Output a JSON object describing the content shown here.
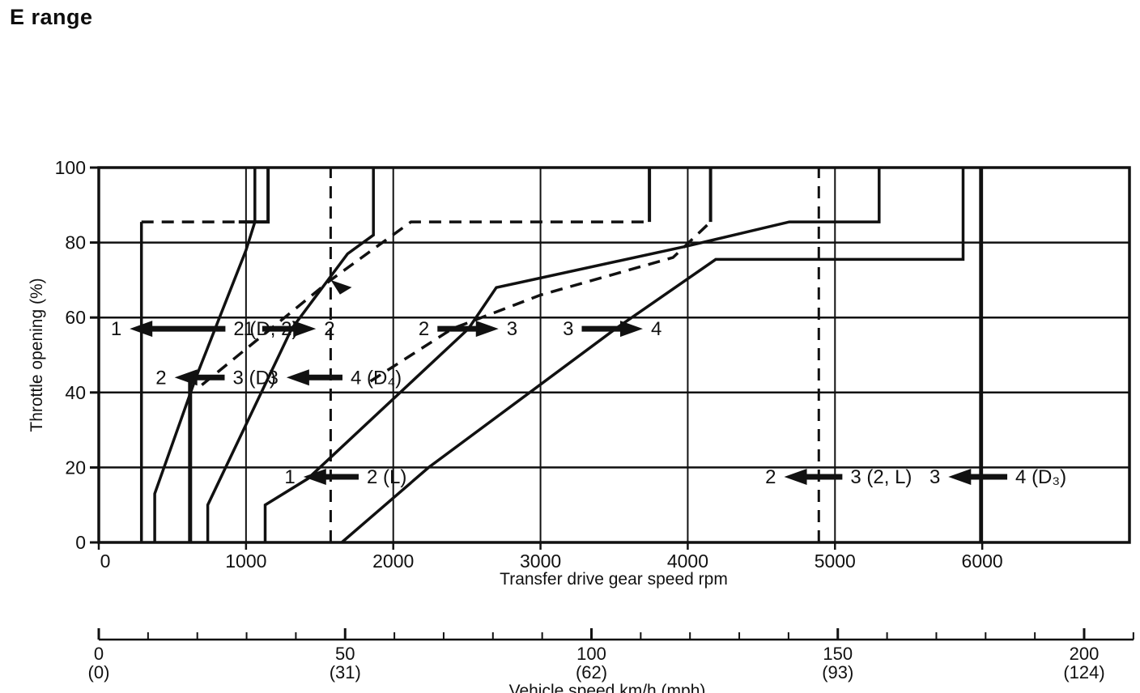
{
  "title": "E range",
  "colors": {
    "ink": "#111111",
    "paper": "#ffffff"
  },
  "chart_data": {
    "type": "line",
    "title": "E range",
    "grid": true,
    "x_axis_rpm": {
      "label": "Transfer drive gear speed  rpm",
      "tick_values": [
        0,
        1000,
        2000,
        3000,
        4000,
        5000,
        6000
      ],
      "range": [
        0,
        7000
      ]
    },
    "y_axis": {
      "label": "Throttle opening (%)",
      "tick_values": [
        0,
        20,
        40,
        60,
        80,
        100
      ],
      "range": [
        0,
        100
      ]
    },
    "x_axis_speed": {
      "label": "Vehicle speed  km/h (mph)",
      "major_ticks_kmh": [
        0,
        50,
        100,
        150,
        200
      ],
      "mph_labels": [
        "(0)",
        "(31)",
        "(62)",
        "(93)",
        "(124)"
      ],
      "minor_step_kmh": 10,
      "range": [
        0,
        210
      ]
    },
    "series": [
      {
        "name": "down-2-1-vertical",
        "style": "solid",
        "width": 3.5,
        "points": [
          [
            290,
            0
          ],
          [
            290,
            85.5
          ]
        ]
      },
      {
        "name": "down-2-1-step-dashed",
        "style": "dashed",
        "width": 3.5,
        "points": [
          [
            290,
            85.5
          ],
          [
            950,
            85.5
          ]
        ]
      },
      {
        "name": "down-2-1-step-solid",
        "style": "solid",
        "width": 4,
        "points": [
          [
            950,
            85.5
          ],
          [
            1150,
            85.5
          ],
          [
            1150,
            100
          ]
        ]
      },
      {
        "name": "down-3-2-curve",
        "style": "solid",
        "width": 3.5,
        "points": [
          [
            380,
            0
          ],
          [
            380,
            13
          ],
          [
            660,
            44
          ],
          [
            1000,
            78
          ],
          [
            1060,
            85.5
          ],
          [
            1060,
            100
          ]
        ]
      },
      {
        "name": "down-3-2-vertical",
        "style": "solid",
        "width": 5,
        "points": [
          [
            620,
            0
          ],
          [
            620,
            44
          ]
        ]
      },
      {
        "name": "up-1-2-curve",
        "style": "solid",
        "width": 3.5,
        "points": [
          [
            740,
            0
          ],
          [
            740,
            10
          ],
          [
            1310,
            57
          ],
          [
            1690,
            77
          ],
          [
            1865,
            82
          ],
          [
            1865,
            100
          ]
        ]
      },
      {
        "name": "dashed-upper-curve",
        "style": "dashed",
        "width": 3.5,
        "points": [
          [
            700,
            42
          ],
          [
            1575,
            70
          ],
          [
            2120,
            85.5
          ],
          [
            3740,
            85.5
          ]
        ]
      },
      {
        "name": "dashed-upper-top",
        "style": "solid",
        "width": 4,
        "points": [
          [
            3740,
            85.5
          ],
          [
            3740,
            100
          ]
        ]
      },
      {
        "name": "up-2-3-curve",
        "style": "solid",
        "width": 3.5,
        "points": [
          [
            1130,
            0
          ],
          [
            1130,
            10
          ],
          [
            1420,
            17
          ],
          [
            2510,
            57
          ],
          [
            2700,
            68
          ],
          [
            3990,
            79
          ],
          [
            4690,
            85.5
          ],
          [
            5300,
            85.5
          ],
          [
            5300,
            100
          ]
        ]
      },
      {
        "name": "up-3-4-curve",
        "style": "solid",
        "width": 3.5,
        "points": [
          [
            1650,
            0
          ],
          [
            2240,
            20
          ],
          [
            3510,
            57
          ],
          [
            4190,
            75.5
          ],
          [
            5870,
            75.5
          ],
          [
            5870,
            100
          ]
        ]
      },
      {
        "name": "dashed-mid-curve",
        "style": "dashed",
        "width": 3.5,
        "points": [
          [
            1845,
            43
          ],
          [
            2400,
            57
          ],
          [
            3000,
            66
          ],
          [
            3900,
            76
          ],
          [
            4155,
            85.5
          ]
        ]
      },
      {
        "name": "dashed-mid-top",
        "style": "solid",
        "width": 4,
        "points": [
          [
            4155,
            85.5
          ],
          [
            4155,
            100
          ]
        ]
      },
      {
        "name": "hold-line-d4",
        "style": "dashed",
        "width": 3,
        "points": [
          [
            1575,
            0
          ],
          [
            1575,
            100
          ]
        ]
      },
      {
        "name": "hold-line-2l",
        "style": "dashed",
        "width": 3,
        "points": [
          [
            4890,
            0
          ],
          [
            4890,
            100
          ]
        ]
      },
      {
        "name": "down-4-3-d3-vertical",
        "style": "solid",
        "width": 4,
        "points": [
          [
            5990,
            0
          ],
          [
            5990,
            100
          ]
        ]
      }
    ],
    "dashed_curve_arrowhead": {
      "rpm": 1575,
      "throttle_pct": 70
    },
    "shift_annotations": [
      {
        "name": "shift-2-1-D2",
        "direction": "downshift",
        "left_label": "1",
        "right_label": "2 (D, 2)",
        "tip": "left",
        "throttle_pct": 57,
        "shaft_from_rpm": 210,
        "shaft_to_rpm": 860
      },
      {
        "name": "shift-1-2",
        "direction": "upshift",
        "left_label": "1",
        "right_label": "2",
        "tip": "right",
        "throttle_pct": 57,
        "shaft_from_rpm": 1110,
        "shaft_to_rpm": 1475
      },
      {
        "name": "shift-2-3",
        "direction": "upshift",
        "left_label": "2",
        "right_label": "3",
        "tip": "right",
        "throttle_pct": 57,
        "shaft_from_rpm": 2300,
        "shaft_to_rpm": 2715
      },
      {
        "name": "shift-3-4",
        "direction": "upshift",
        "left_label": "3",
        "right_label": "4",
        "tip": "right",
        "throttle_pct": 57,
        "shaft_from_rpm": 3280,
        "shaft_to_rpm": 3695
      },
      {
        "name": "shift-3-2-D",
        "direction": "downshift",
        "left_label": "2",
        "right_label": "3 (D)",
        "tip": "left",
        "throttle_pct": 44,
        "shaft_from_rpm": 515,
        "shaft_to_rpm": 855
      },
      {
        "name": "shift-4-3-D4",
        "direction": "downshift",
        "left_label": "3",
        "right_label": "4 (D₄)",
        "tip": "left",
        "throttle_pct": 44,
        "shaft_from_rpm": 1275,
        "shaft_to_rpm": 1655
      },
      {
        "name": "shift-2-1-L",
        "direction": "downshift",
        "left_label": "1",
        "right_label": "2 (L)",
        "tip": "left",
        "throttle_pct": 17.5,
        "shaft_from_rpm": 1390,
        "shaft_to_rpm": 1765
      },
      {
        "name": "shift-3-2-2L",
        "direction": "downshift",
        "left_label": "2",
        "right_label": "3 (2, L)",
        "tip": "left",
        "throttle_pct": 17.5,
        "shaft_from_rpm": 4655,
        "shaft_to_rpm": 5050
      },
      {
        "name": "shift-4-3-D3",
        "direction": "downshift",
        "left_label": "3",
        "right_label": "4 (D₃)",
        "tip": "left",
        "throttle_pct": 17.5,
        "shaft_from_rpm": 5770,
        "shaft_to_rpm": 6170
      }
    ]
  }
}
